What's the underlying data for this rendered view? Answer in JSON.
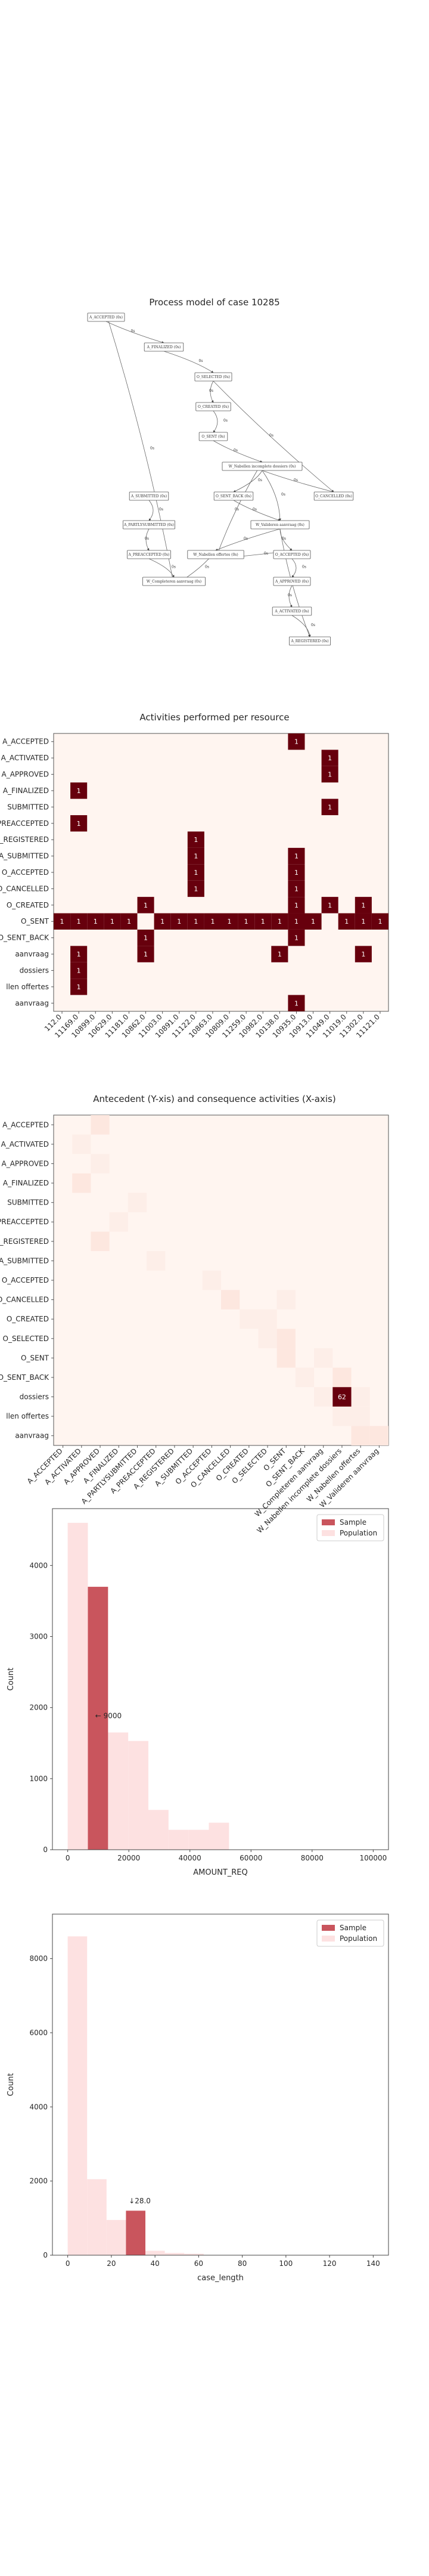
{
  "chart_data": [
    {
      "type": "diagram",
      "title": "Process model of case 10285",
      "nodes": [
        {
          "id": "n1",
          "label": "A_ACCEPTED (0s)"
        },
        {
          "id": "n2",
          "label": "A_FINALIZED (0s)"
        },
        {
          "id": "n3",
          "label": "O_SELECTED (0s)"
        },
        {
          "id": "n4",
          "label": "O_CREATED (0s)"
        },
        {
          "id": "n5",
          "label": "O_SENT (0s)"
        },
        {
          "id": "n6",
          "label": "W_Nabellen incomplete dossiers (0s)"
        },
        {
          "id": "n7",
          "label": "O_SENT_BACK (0s)"
        },
        {
          "id": "n8",
          "label": "O_CANCELLED (0s)"
        },
        {
          "id": "n9",
          "label": "A_SUBMITTED (0s)"
        },
        {
          "id": "n10",
          "label": "W_Valideren aanvraag (0s)"
        },
        {
          "id": "n11",
          "label": "A_PARTLYSUBMITTED (0s)"
        },
        {
          "id": "n12",
          "label": "A_PREACCEPTED (0s)"
        },
        {
          "id": "n13",
          "label": "W_Nabellen offertes (0s)"
        },
        {
          "id": "n14",
          "label": "O_ACCEPTED (0s)"
        },
        {
          "id": "n15",
          "label": "W_Completeren aanvraag (0s)"
        },
        {
          "id": "n16",
          "label": "A_APPROVED (0s)"
        },
        {
          "id": "n17",
          "label": "A_ACTIVATED (0s)"
        },
        {
          "id": "n18",
          "label": "A_REGISTERED (0s)"
        }
      ],
      "edge_labels": [
        "0s",
        "0s",
        "0s",
        "0s",
        "0s",
        "0s",
        "0s",
        "0s",
        "0s",
        "0s",
        "0s",
        "0s",
        "0s",
        "0s",
        "0s",
        "0s",
        "0s",
        "0s",
        "0s",
        "0s",
        "0s",
        "0s",
        "0s"
      ]
    },
    {
      "type": "heatmap",
      "title": "Activities performed per resource",
      "rows": [
        "A_ACCEPTED",
        "A_ACTIVATED",
        "A_APPROVED",
        "A_FINALIZED",
        "A_PARTLYSUBMITTED",
        "A_PREACCEPTED",
        "A_REGISTERED",
        "A_SUBMITTED",
        "O_ACCEPTED",
        "O_CANCELLED",
        "O_CREATED",
        "O_SENT",
        "O_SENT_BACK",
        "W_Completeren aanvraag",
        "W_Nabellen incomplete dossiers",
        "W_Nabellen offertes",
        "W_Valideren aanvraag"
      ],
      "row_labels": [
        "A_ACCEPTED",
        "A_ACTIVATED",
        "A_APPROVED",
        "A_FINALIZED",
        "SUBMITTED",
        "A_PREACCEPTED",
        "A_REGISTERED",
        "A_SUBMITTED",
        "O_ACCEPTED",
        "O_CANCELLED",
        "O_CREATED",
        "O_SENT",
        "O_SENT_BACK",
        "aanvraag",
        "dossiers",
        "llen offertes",
        "aanvraag"
      ],
      "cols": [
        "112.0",
        "11169.0",
        "10899.0",
        "10629.0",
        "11181.0",
        "10862.0",
        "11003.0",
        "10891.0",
        "11122.0",
        "10863.0",
        "10809.0",
        "11259.0",
        "10982.0",
        "10138.0",
        "10935.0",
        "10913.0",
        "11049.0",
        "11019.0",
        "11302.0",
        "11121.0"
      ],
      "cells": [
        [
          0,
          14,
          1
        ],
        [
          1,
          16,
          1
        ],
        [
          2,
          16,
          1
        ],
        [
          3,
          1,
          1
        ],
        [
          4,
          16,
          1
        ],
        [
          5,
          1,
          1
        ],
        [
          6,
          8,
          1
        ],
        [
          7,
          8,
          1
        ],
        [
          7,
          14,
          1
        ],
        [
          8,
          8,
          1
        ],
        [
          8,
          14,
          1
        ],
        [
          9,
          8,
          1
        ],
        [
          9,
          14,
          1
        ],
        [
          10,
          5,
          1
        ],
        [
          10,
          18,
          1
        ],
        [
          11,
          0,
          1
        ],
        [
          11,
          1,
          1
        ],
        [
          11,
          2,
          1
        ],
        [
          11,
          3,
          1
        ],
        [
          11,
          4,
          1
        ],
        [
          11,
          6,
          1
        ],
        [
          11,
          7,
          1
        ],
        [
          11,
          8,
          1
        ],
        [
          11,
          9,
          1
        ],
        [
          11,
          10,
          1
        ],
        [
          11,
          11,
          1
        ],
        [
          11,
          12,
          1
        ],
        [
          11,
          13,
          1
        ],
        [
          11,
          14,
          1
        ],
        [
          11,
          15,
          1
        ],
        [
          11,
          17,
          1
        ],
        [
          11,
          18,
          1
        ],
        [
          11,
          19,
          1
        ],
        [
          12,
          5,
          1
        ],
        [
          12,
          14,
          1
        ],
        [
          13,
          1,
          1
        ],
        [
          13,
          5,
          1
        ],
        [
          13,
          13,
          1
        ],
        [
          13,
          18,
          1
        ],
        [
          14,
          1,
          1
        ],
        [
          15,
          1,
          1
        ],
        [
          16,
          14,
          1
        ],
        [
          10,
          14,
          1
        ],
        [
          10,
          16,
          1
        ]
      ],
      "cell_value_label": "1"
    },
    {
      "type": "heatmap",
      "title": "Antecedent (Y-xis) and consequence activities (X-axis)",
      "rows": [
        "A_ACCEPTED",
        "A_ACTIVATED",
        "A_APPROVED",
        "A_FINALIZED",
        "A_PARTLYSUBMITTED",
        "A_PREACCEPTED",
        "A_REGISTERED",
        "A_SUBMITTED",
        "O_ACCEPTED",
        "O_CANCELLED",
        "O_CREATED",
        "O_SELECTED",
        "O_SENT",
        "O_SENT_BACK",
        "W_Nabellen incomplete dossiers",
        "W_Nabellen offertes",
        "W_Valideren aanvraag"
      ],
      "row_labels": [
        "A_ACCEPTED",
        "A_ACTIVATED",
        "A_APPROVED",
        "A_FINALIZED",
        "SUBMITTED",
        "A_PREACCEPTED",
        "A_REGISTERED",
        "A_SUBMITTED",
        "O_ACCEPTED",
        "O_CANCELLED",
        "O_CREATED",
        "O_SELECTED",
        "O_SENT",
        "O_SENT_BACK",
        "dossiers",
        "llen offertes",
        "aanvraag"
      ],
      "cols": [
        "A_ACCEPTED",
        "A_ACTIVATED",
        "A_APPROVED",
        "A_FINALIZED",
        "A_PARTLYSUBMITTED",
        "A_PREACCEPTED",
        "A_REGISTERED",
        "A_SUBMITTED",
        "O_ACCEPTED",
        "O_CANCELLED",
        "O_CREATED",
        "O_SELECTED",
        "O_SENT",
        "O_SENT_BACK",
        "W_Completeren aanvraag",
        "W_Nabellen incomplete dossiers",
        "W_Nabellen offertes",
        "W_Valideren aanvraag"
      ],
      "highlight": {
        "row": 14,
        "col": 15,
        "value": 62
      }
    },
    {
      "type": "bar",
      "xlabel": "AMOUNT_REQ",
      "ylabel": "Count",
      "xlim": [
        -5000,
        105000
      ],
      "ylim": [
        0,
        4800
      ],
      "xticks": [
        0,
        20000,
        40000,
        60000,
        80000,
        100000
      ],
      "yticks": [
        0,
        1000,
        2000,
        3000,
        4000
      ],
      "bin_edges": [
        0,
        6600,
        13200,
        19800,
        26400,
        33000,
        39600,
        46200,
        52800
      ],
      "series": [
        {
          "name": "Population",
          "values": [
            4600,
            3700,
            1650,
            1530,
            560,
            280,
            280,
            380
          ]
        },
        {
          "name": "Sample",
          "values": [
            0,
            3700,
            0,
            0,
            0,
            0,
            0,
            0
          ]
        }
      ],
      "annotation": "← 9000",
      "annotation_value": [
        9000,
        1850
      ],
      "legend": "top-right"
    },
    {
      "type": "bar",
      "xlabel": "case_length",
      "ylabel": "Count",
      "xlim": [
        -7,
        147
      ],
      "ylim": [
        0,
        9200
      ],
      "xticks": [
        0,
        20,
        40,
        60,
        80,
        100,
        120,
        140
      ],
      "yticks": [
        0,
        2000,
        4000,
        6000,
        8000
      ],
      "bin_edges": [
        0,
        8.9,
        17.8,
        26.7,
        35.6,
        44.5,
        53.4,
        62.3
      ],
      "series": [
        {
          "name": "Population",
          "values": [
            8600,
            2050,
            950,
            1200,
            120,
            60,
            40
          ]
        },
        {
          "name": "Sample",
          "values": [
            0,
            0,
            0,
            1200,
            0,
            0,
            0
          ]
        }
      ],
      "annotation": "↓28.0",
      "annotation_value": [
        28,
        1400
      ],
      "legend": "top-right"
    }
  ],
  "colors": {
    "heat_high": "#67000d",
    "heat_low": "#fff5f0",
    "sample": "#c9555d",
    "population": "#fde1e1"
  }
}
